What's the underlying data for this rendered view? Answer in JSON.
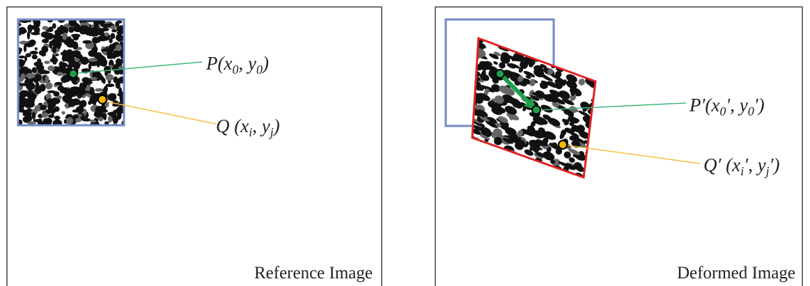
{
  "panels": [
    {
      "caption": "Reference Image",
      "labels": [
        [
          {
            "t": "P("
          },
          {
            "t": "x",
            "sub": "0"
          },
          {
            "t": ", "
          },
          {
            "t": "y",
            "sub": "0"
          },
          {
            "t": ")"
          }
        ],
        [
          {
            "t": "Q ("
          },
          {
            "t": "x",
            "sub": "i"
          },
          {
            "t": ", "
          },
          {
            "t": "y",
            "sub": "j"
          },
          {
            "t": ")"
          }
        ]
      ]
    },
    {
      "caption": "Deformed Image",
      "labels": [
        [
          {
            "t": "P′("
          },
          {
            "t": "x",
            "sub": "0"
          },
          {
            "t": "′, "
          },
          {
            "t": "y",
            "sub": "0"
          },
          {
            "t": "′)"
          }
        ],
        [
          {
            "t": "Q′ ("
          },
          {
            "t": "x",
            "sub": "i"
          },
          {
            "t": "′, "
          },
          {
            "t": "y",
            "sub": "j"
          },
          {
            "t": "′)"
          }
        ]
      ]
    }
  ]
}
